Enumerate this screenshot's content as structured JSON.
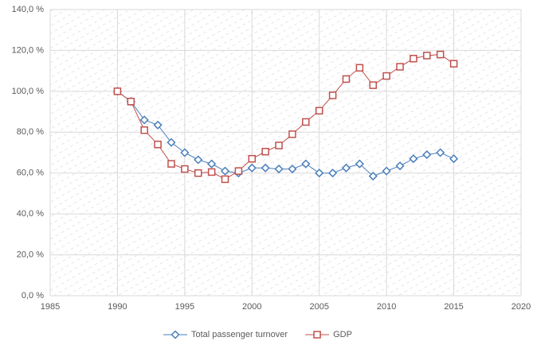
{
  "chart_data": {
    "type": "line",
    "x": [
      1990,
      1991,
      1992,
      1993,
      1994,
      1995,
      1996,
      1997,
      1998,
      1999,
      2000,
      2001,
      2002,
      2003,
      2004,
      2005,
      2006,
      2007,
      2008,
      2009,
      2010,
      2011,
      2012,
      2013,
      2014,
      2015
    ],
    "series": [
      {
        "name": "Total passenger turnover",
        "color": "#4a7ebb",
        "marker": "diamond",
        "values": [
          100,
          95,
          86,
          83.5,
          75,
          70,
          66.5,
          64.5,
          61,
          60,
          62.5,
          62.5,
          62,
          62,
          64.5,
          60,
          60,
          62.5,
          64.5,
          58.5,
          61,
          63.5,
          67,
          69,
          70,
          67
        ]
      },
      {
        "name": "GDP",
        "color": "#c0504d",
        "marker": "square",
        "values": [
          100,
          95,
          81,
          74,
          64.5,
          62,
          60,
          60.5,
          57,
          61,
          67,
          70.5,
          73.5,
          79,
          85,
          90.5,
          98,
          106,
          111.5,
          103,
          107.5,
          112,
          116,
          117.5,
          118,
          113.5
        ]
      }
    ],
    "xlim": [
      1985,
      2020
    ],
    "xticks": [
      1985,
      1990,
      1995,
      2000,
      2005,
      2010,
      2015,
      2020
    ],
    "ylim": [
      0,
      140
    ],
    "yticks": [
      {
        "value": 0,
        "label": "0,0 %"
      },
      {
        "value": 20,
        "label": "20,0 %"
      },
      {
        "value": 40,
        "label": "40,0 %"
      },
      {
        "value": 60,
        "label": "60,0 %"
      },
      {
        "value": 80,
        "label": "80,0 %"
      },
      {
        "value": 100,
        "label": "100,0 %"
      },
      {
        "value": 120,
        "label": "120,0 %"
      },
      {
        "value": 140,
        "label": "140,0 %"
      }
    ],
    "grid": true,
    "legend": "bottom"
  }
}
